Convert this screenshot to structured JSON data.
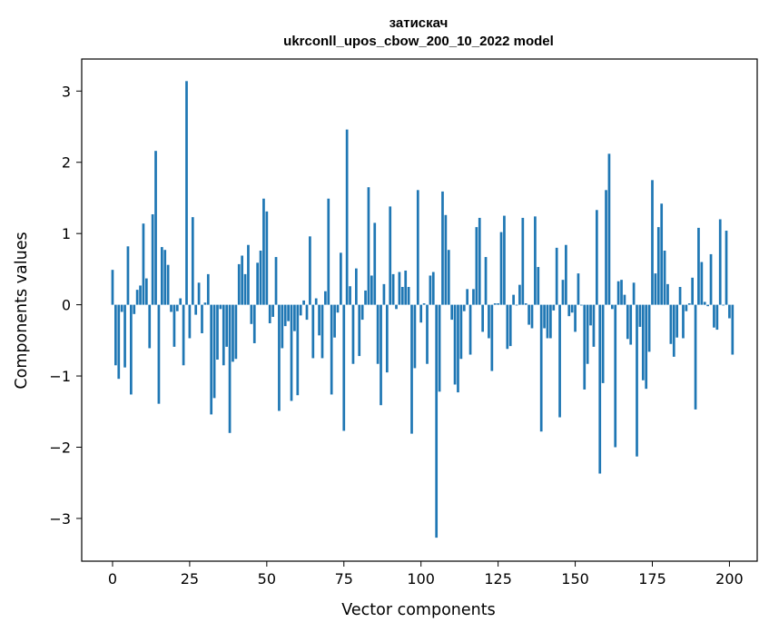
{
  "chart_data": {
    "type": "bar",
    "title": "затискач",
    "subtitle": "ukrconll_upos_cbow_200_10_2022 model",
    "xlabel": "Vector components",
    "ylabel": "Components values",
    "xlim": [
      -10,
      209
    ],
    "ylim": [
      -3.6,
      3.45
    ],
    "xticks": [
      0,
      25,
      50,
      75,
      100,
      125,
      150,
      175,
      200
    ],
    "xtick_labels": [
      "0",
      "25",
      "50",
      "75",
      "100",
      "125",
      "150",
      "175",
      "200"
    ],
    "yticks": [
      3,
      2,
      1,
      0,
      -1,
      -2,
      -3
    ],
    "ytick_labels": [
      "3",
      "2",
      "1",
      "0",
      "−1",
      "−2",
      "−3"
    ],
    "bar_color": "#1f77b4",
    "grid": false,
    "values": [
      0.49,
      -0.85,
      -1.04,
      -0.1,
      -0.88,
      0.82,
      -1.26,
      -0.13,
      0.21,
      0.27,
      1.14,
      0.37,
      -0.61,
      1.27,
      2.16,
      -1.39,
      0.81,
      0.77,
      0.56,
      -0.1,
      -0.59,
      -0.09,
      0.09,
      -0.85,
      3.14,
      -0.47,
      1.23,
      -0.14,
      0.31,
      -0.4,
      0.03,
      0.43,
      -1.54,
      -1.31,
      -0.77,
      -0.06,
      -0.85,
      -0.59,
      -1.8,
      -0.8,
      -0.76,
      0.57,
      0.69,
      0.43,
      0.84,
      -0.27,
      -0.54,
      0.59,
      0.76,
      1.49,
      1.31,
      -0.26,
      -0.17,
      0.67,
      -1.49,
      -0.61,
      -0.3,
      -0.23,
      -1.35,
      -0.37,
      -1.27,
      -0.15,
      0.06,
      -0.21,
      0.96,
      -0.75,
      0.09,
      -0.43,
      -0.75,
      0.19,
      1.49,
      -1.26,
      -0.46,
      -0.11,
      0.73,
      -1.77,
      2.46,
      0.26,
      -0.83,
      0.51,
      -0.72,
      -0.21,
      0.2,
      1.65,
      0.41,
      1.15,
      -0.83,
      -1.41,
      0.29,
      -0.95,
      1.38,
      0.43,
      -0.06,
      0.46,
      0.25,
      0.48,
      0.25,
      -1.81,
      -0.89,
      1.61,
      -0.25,
      0.02,
      -0.83,
      0.41,
      0.46,
      -3.27,
      -1.22,
      1.59,
      1.26,
      0.77,
      -0.21,
      -1.12,
      -1.23,
      -0.76,
      -0.09,
      0.22,
      -0.7,
      0.22,
      1.09,
      1.22,
      -0.38,
      0.67,
      -0.47,
      -0.93,
      0.02,
      0.02,
      1.02,
      1.25,
      -0.62,
      -0.58,
      0.14,
      -0.01,
      0.28,
      1.22,
      0.02,
      -0.28,
      -0.33,
      1.24,
      0.53,
      -1.78,
      -0.33,
      -0.47,
      -0.47,
      -0.08,
      0.8,
      -1.58,
      0.35,
      0.84,
      -0.16,
      -0.11,
      -0.38,
      0.44,
      -0.01,
      -1.19,
      -0.83,
      -0.29,
      -0.59,
      1.33,
      -2.37,
      -1.1,
      1.61,
      2.12,
      -0.06,
      -2.0,
      0.33,
      0.35,
      0.14,
      -0.48,
      -0.56,
      0.31,
      -2.13,
      -0.31,
      -1.06,
      -1.18,
      -0.66,
      1.75,
      0.44,
      1.09,
      1.42,
      0.76,
      0.29,
      -0.55,
      -0.73,
      -0.46,
      0.25,
      -0.47,
      -0.09,
      0.02,
      0.38,
      -1.47,
      1.08,
      0.6,
      0.04,
      -0.02,
      0.71,
      -0.32,
      -0.35,
      1.2,
      -0.01,
      1.04,
      -0.19,
      -0.7
    ]
  }
}
